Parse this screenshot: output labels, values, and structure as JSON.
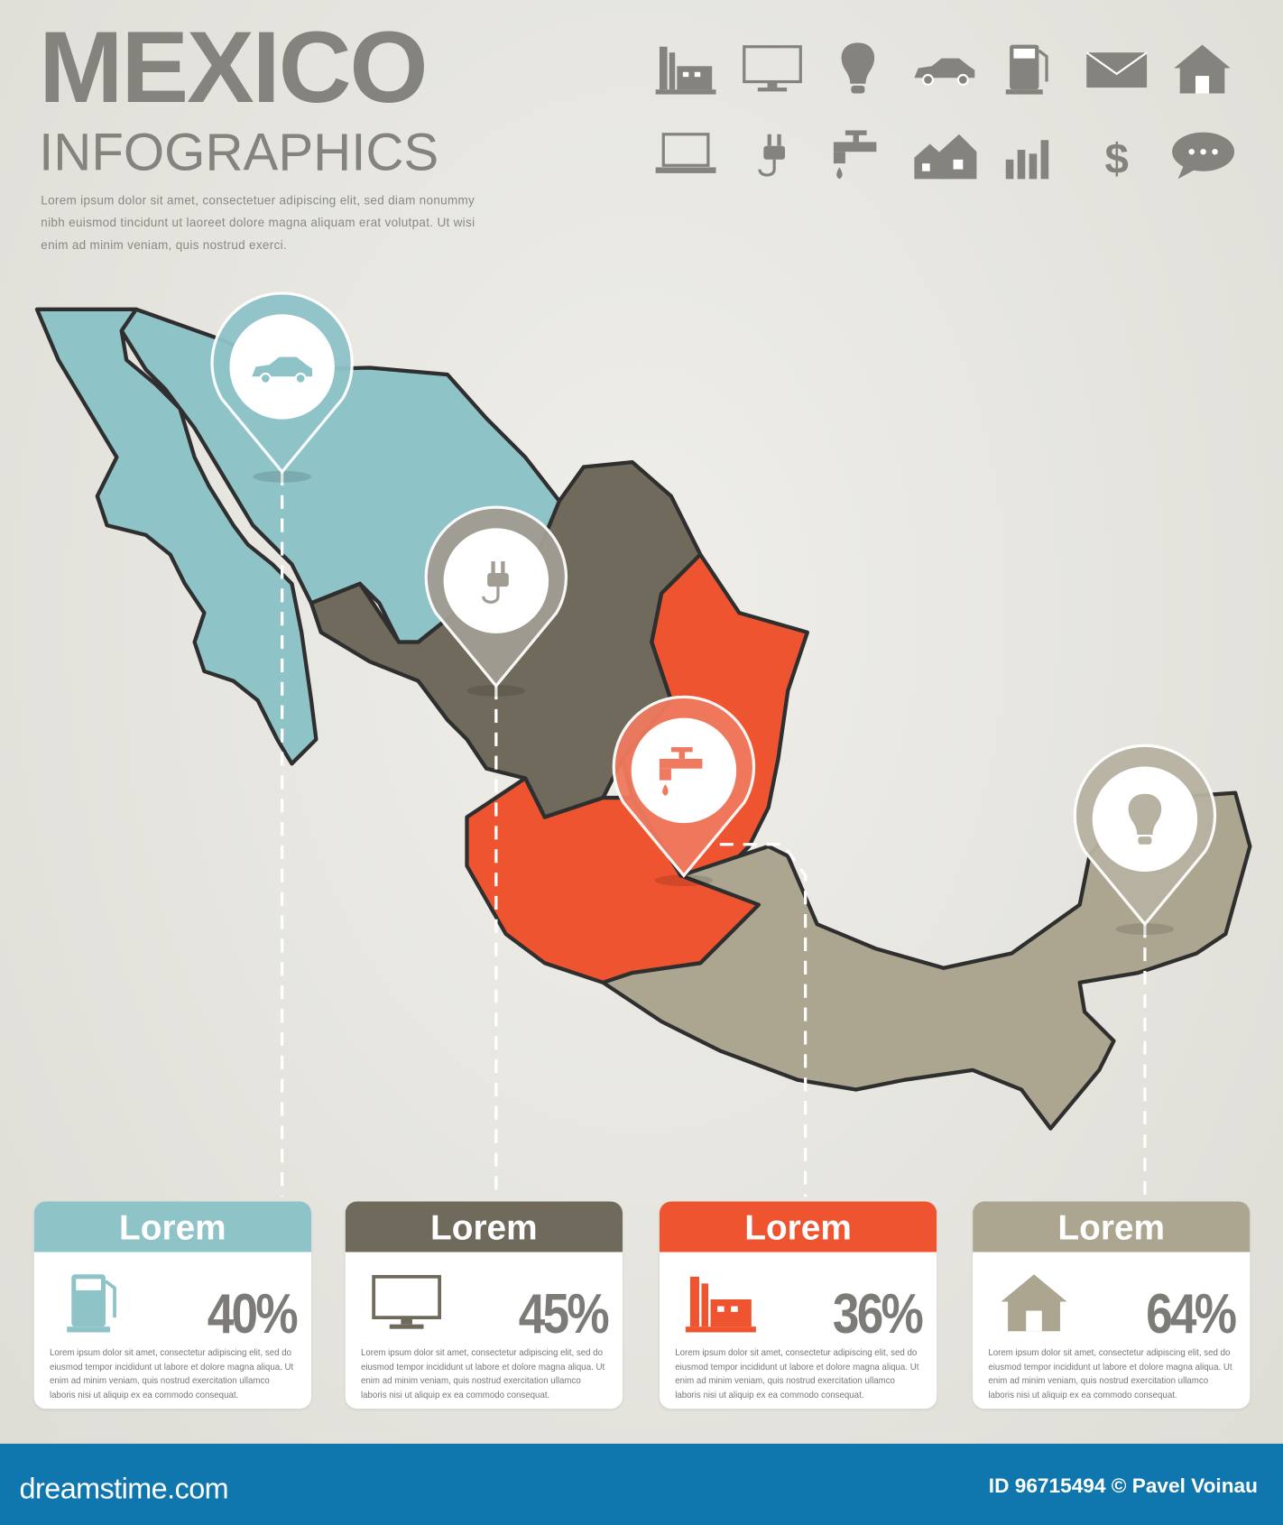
{
  "header": {
    "title": "MEXICO",
    "subtitle": "INFOGRAPHICS",
    "intro": "Lorem ipsum dolor sit amet, consectetuer adipiscing elit, sed diam nonummy nibh euismod tincidunt ut laoreet dolore magna aliquam erat volutpat. Ut wisi enim ad minim veniam, quis nostrud exerci."
  },
  "icon_set": [
    "factory-icon",
    "monitor-icon",
    "lightbulb-icon",
    "car-icon",
    "fuel-pump-icon",
    "envelope-icon",
    "house-icon",
    "laptop-icon",
    "plug-icon",
    "faucet-icon",
    "houses-icon",
    "bar-chart-icon",
    "dollar-icon",
    "speech-bubble-icon"
  ],
  "colors": {
    "blue": "#8ec3c8",
    "dark_brown": "#6f6a5c",
    "orange": "#ef5430",
    "tan": "#aca58f",
    "footer": "#1077ae"
  },
  "pins": [
    {
      "icon": "car-icon",
      "color": "#8ec3c8"
    },
    {
      "icon": "plug-icon",
      "color": "#a29d92"
    },
    {
      "icon": "faucet-icon",
      "color": "#ef7a5f"
    },
    {
      "icon": "lightbulb-icon",
      "color": "#b8b2a2"
    }
  ],
  "cards": [
    {
      "title": "Lorem",
      "value": "40%",
      "icon": "fuel-pump-icon",
      "color": "#8ec3c8",
      "text": "Lorem ipsum dolor sit amet, consectetur adipiscing elit, sed do eiusmod tempor incididunt ut labore et dolore magna aliqua. Ut enim ad minim veniam, quis nostrud exercitation ullamco laboris nisi ut aliquip ex ea commodo consequat."
    },
    {
      "title": "Lorem",
      "value": "45%",
      "icon": "monitor-icon",
      "color": "#6f6a5c",
      "text": "Lorem ipsum dolor sit amet, consectetur adipiscing elit, sed do eiusmod tempor incididunt ut labore et dolore magna aliqua. Ut enim ad minim veniam, quis nostrud exercitation ullamco laboris nisi ut aliquip ex ea commodo consequat."
    },
    {
      "title": "Lorem",
      "value": "36%",
      "icon": "factory-icon",
      "color": "#ef5430",
      "text": "Lorem ipsum dolor sit amet, consectetur adipiscing elit, sed do eiusmod tempor incididunt ut labore et dolore magna aliqua. Ut enim ad minim veniam, quis nostrud exercitation ullamco laboris nisi ut aliquip ex ea commodo consequat."
    },
    {
      "title": "Lorem",
      "value": "64%",
      "icon": "house-icon",
      "color": "#aca58f",
      "text": "Lorem ipsum dolor sit amet, consectetur adipiscing elit, sed do eiusmod tempor incididunt ut labore et dolore magna aliqua. Ut enim ad minim veniam, quis nostrud exercitation ullamco laboris nisi ut aliquip ex ea commodo consequat."
    }
  ],
  "footer": {
    "brand": "dreamstime.com",
    "credit": "ID 96715494 © Pavel Voinau"
  }
}
